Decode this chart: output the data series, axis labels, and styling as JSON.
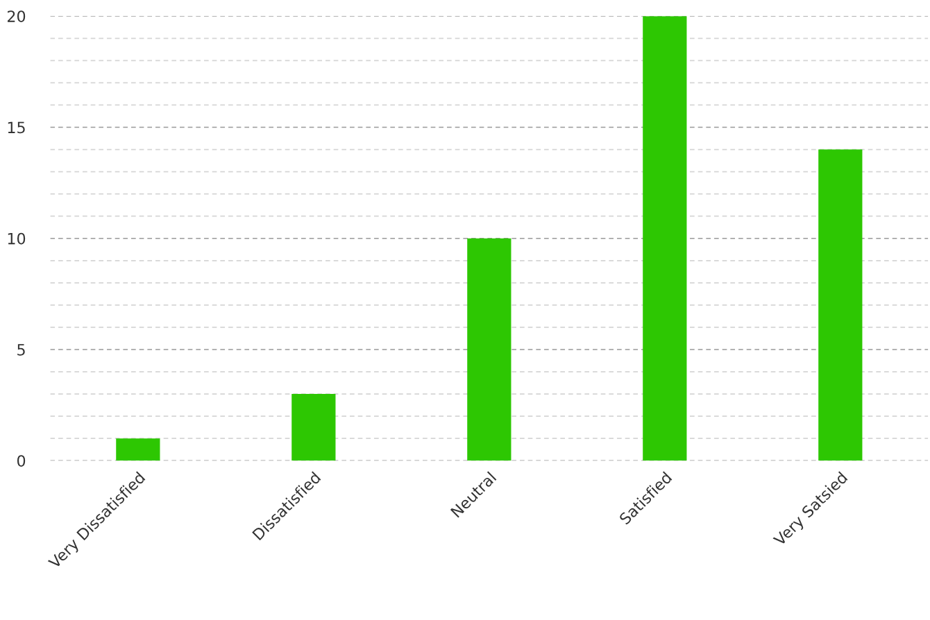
{
  "chart_data": {
    "type": "bar",
    "categories": [
      "Very Dissatisfied",
      "Dissatisfied",
      "Neutral",
      "Satisfied",
      "Very Satsied"
    ],
    "values": [
      1,
      3,
      10,
      20,
      14
    ],
    "color": "#2dc702",
    "ylim": [
      0,
      20
    ],
    "yticks": [
      0,
      {
        "value": 1,
        "label": null
      },
      {
        "value": 2,
        "label": null
      },
      {
        "value": 3,
        "label": null
      },
      {
        "value": 4,
        "label": null
      },
      5,
      {
        "value": 6,
        "label": null
      },
      {
        "value": 7,
        "label": null
      },
      {
        "value": 8,
        "label": null
      },
      {
        "value": 9,
        "label": null
      },
      10,
      {
        "value": 11,
        "label": null
      },
      {
        "value": 12,
        "label": null
      },
      {
        "value": 13,
        "label": null
      },
      {
        "value": 14,
        "label": null
      },
      15,
      {
        "value": 16,
        "label": null
      },
      {
        "value": 17,
        "label": null
      },
      {
        "value": 18,
        "label": null
      },
      {
        "value": 19,
        "label": null
      },
      20
    ],
    "grid": "y",
    "legend": false
  }
}
